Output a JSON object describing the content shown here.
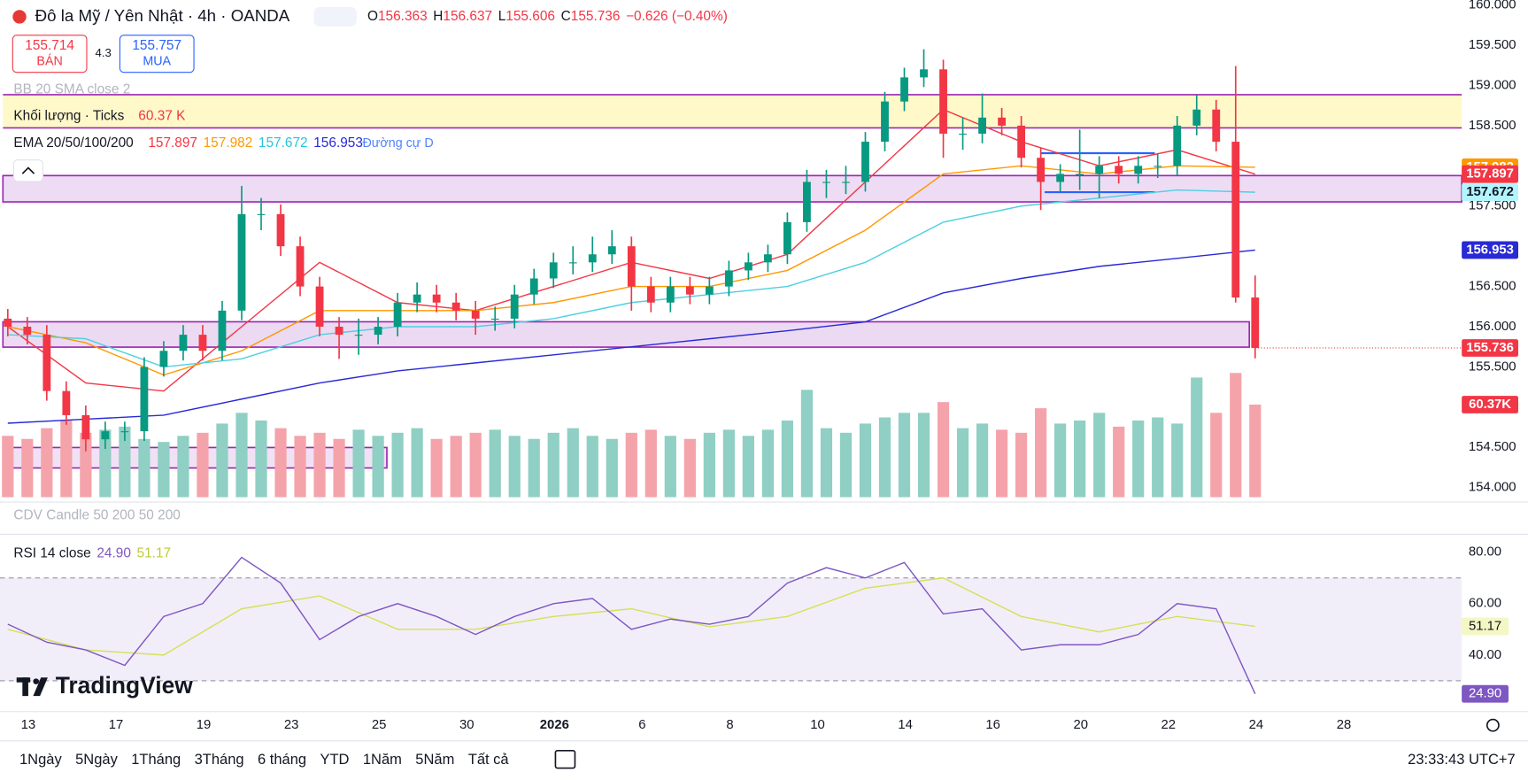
{
  "header": {
    "symbol": "Đô la Mỹ / Yên Nhật · 4h · OANDA",
    "ohlc_labels": [
      "O",
      "H",
      "L",
      "C"
    ],
    "change": "−0.626 (−0.40%)",
    "sell_price": "155.714",
    "sell_label": "BÁN",
    "spread": "4.3",
    "buy_price": "155.757",
    "buy_label": "MUA"
  },
  "indicators": {
    "bb": "BB 20 SMA close 2",
    "cdv": "CDV Candle 50 200 50 200",
    "ema_overlay": "Đường cự D"
  },
  "chart_data": {
    "type": "candlestick",
    "up_color": "#089981",
    "down_color": "#f23645",
    "grid": false,
    "ylim": [
      153.88,
      160.06
    ],
    "yticks": [
      {
        "value": 154,
        "label": "154.000"
      },
      {
        "value": 154.5,
        "label": "154.500"
      },
      {
        "value": 155.5,
        "label": "155.500"
      },
      {
        "value": 156,
        "label": "156.000"
      },
      {
        "value": 156.5,
        "label": "156.500"
      },
      {
        "value": 157.5,
        "label": "157.500"
      },
      {
        "value": 158.5,
        "label": "158.500"
      },
      {
        "value": 159,
        "label": "159.000"
      },
      {
        "value": 159.5,
        "label": "159.500"
      },
      {
        "value": 160,
        "label": "160.000"
      }
    ],
    "xtick_labels": [
      "13",
      "17",
      "19",
      "23",
      "25",
      "30",
      "2026",
      "6",
      "8",
      "10",
      "14",
      "16",
      "20",
      "22",
      "24",
      "28"
    ],
    "candles": [
      [
        156.1,
        156.22,
        155.88,
        156.0
      ],
      [
        156.0,
        156.12,
        155.78,
        155.9
      ],
      [
        155.9,
        156.02,
        155.08,
        155.2
      ],
      [
        155.2,
        155.32,
        154.78,
        154.9
      ],
      [
        154.9,
        155.02,
        154.45,
        154.6
      ],
      [
        154.6,
        154.82,
        154.48,
        154.7
      ],
      [
        154.7,
        154.82,
        154.58,
        154.7
      ],
      [
        154.7,
        155.62,
        154.58,
        155.5
      ],
      [
        155.5,
        155.82,
        155.38,
        155.7
      ],
      [
        155.7,
        156.02,
        155.58,
        155.9
      ],
      [
        155.9,
        156.02,
        155.58,
        155.7
      ],
      [
        155.7,
        156.32,
        155.58,
        156.2
      ],
      [
        156.2,
        157.75,
        156.08,
        157.4
      ],
      [
        157.4,
        157.6,
        157.2,
        157.4
      ],
      [
        157.4,
        157.52,
        156.88,
        157.0
      ],
      [
        157.0,
        157.12,
        156.38,
        156.5
      ],
      [
        156.5,
        156.62,
        155.88,
        156.0
      ],
      [
        156.0,
        156.12,
        155.6,
        155.9
      ],
      [
        155.9,
        156.1,
        155.65,
        155.9
      ],
      [
        155.9,
        156.12,
        155.78,
        156.0
      ],
      [
        156.0,
        156.42,
        155.88,
        156.3
      ],
      [
        156.3,
        156.55,
        156.18,
        156.4
      ],
      [
        156.4,
        156.52,
        156.18,
        156.3
      ],
      [
        156.3,
        156.42,
        156.08,
        156.2
      ],
      [
        156.2,
        156.32,
        155.9,
        156.1
      ],
      [
        156.1,
        156.25,
        155.95,
        156.1
      ],
      [
        156.1,
        156.52,
        155.98,
        156.4
      ],
      [
        156.4,
        156.72,
        156.28,
        156.6
      ],
      [
        156.6,
        156.92,
        156.48,
        156.8
      ],
      [
        156.8,
        157.0,
        156.65,
        156.8
      ],
      [
        156.8,
        157.12,
        156.68,
        156.9
      ],
      [
        156.9,
        157.2,
        156.78,
        157.0
      ],
      [
        157.0,
        157.12,
        156.2,
        156.5
      ],
      [
        156.5,
        156.62,
        156.18,
        156.3
      ],
      [
        156.3,
        156.62,
        156.18,
        156.5
      ],
      [
        156.5,
        156.62,
        156.28,
        156.4
      ],
      [
        156.4,
        156.62,
        156.28,
        156.5
      ],
      [
        156.5,
        156.82,
        156.38,
        156.7
      ],
      [
        156.7,
        156.92,
        156.58,
        156.8
      ],
      [
        156.8,
        157.02,
        156.68,
        156.9
      ],
      [
        156.9,
        157.42,
        156.78,
        157.3
      ],
      [
        157.3,
        157.95,
        157.18,
        157.8
      ],
      [
        157.8,
        157.95,
        157.6,
        157.8
      ],
      [
        157.8,
        158.0,
        157.65,
        157.8
      ],
      [
        157.8,
        158.42,
        157.68,
        158.3
      ],
      [
        158.3,
        158.92,
        158.18,
        158.8
      ],
      [
        158.8,
        159.22,
        158.68,
        159.1
      ],
      [
        159.1,
        159.45,
        158.98,
        159.2
      ],
      [
        159.2,
        159.32,
        158.1,
        158.4
      ],
      [
        158.4,
        158.6,
        158.2,
        158.4
      ],
      [
        158.4,
        158.9,
        158.28,
        158.6
      ],
      [
        158.6,
        158.72,
        158.38,
        158.5
      ],
      [
        158.5,
        158.62,
        157.98,
        158.1
      ],
      [
        158.1,
        158.22,
        157.45,
        157.8
      ],
      [
        157.8,
        158.02,
        157.68,
        157.9
      ],
      [
        157.9,
        158.45,
        157.7,
        157.9
      ],
      [
        157.9,
        158.12,
        157.6,
        158.0
      ],
      [
        158.0,
        158.12,
        157.78,
        157.9
      ],
      [
        157.9,
        158.12,
        157.78,
        158.0
      ],
      [
        158.0,
        158.15,
        157.85,
        158.0
      ],
      [
        158.0,
        158.62,
        157.88,
        158.5
      ],
      [
        158.5,
        158.88,
        158.38,
        158.7
      ],
      [
        158.7,
        158.82,
        158.18,
        158.3
      ],
      [
        158.3,
        159.24,
        156.3,
        156.363
      ],
      [
        156.363,
        156.637,
        155.606,
        155.736
      ]
    ],
    "volume": {
      "name": "Khối lượng · Ticks",
      "legend_value": "60.37 K",
      "badge": "60.37K",
      "values": [
        40,
        38,
        45,
        50,
        42,
        44,
        46,
        38,
        36,
        40,
        42,
        48,
        55,
        50,
        45,
        40,
        42,
        38,
        44,
        40,
        42,
        45,
        38,
        40,
        42,
        44,
        40,
        38,
        42,
        45,
        40,
        38,
        42,
        44,
        40,
        38,
        42,
        44,
        40,
        44,
        50,
        70,
        45,
        42,
        48,
        52,
        55,
        55,
        62,
        45,
        48,
        44,
        42,
        58,
        48,
        50,
        55,
        46,
        50,
        52,
        48,
        78,
        55,
        81,
        60.37
      ]
    },
    "ema": {
      "label": "EMA 20/50/100/200",
      "index": [
        0,
        4,
        8,
        12,
        16,
        20,
        24,
        28,
        32,
        36,
        40,
        44,
        48,
        52,
        56,
        60,
        64
      ],
      "series": [
        {
          "color": "#f23645",
          "values": [
            156.0,
            155.3,
            155.2,
            156.0,
            156.8,
            156.3,
            156.2,
            156.5,
            156.8,
            156.6,
            156.9,
            157.8,
            158.7,
            158.3,
            158.0,
            158.2,
            157.897
          ]
        },
        {
          "color": "#ff9800",
          "values": [
            156.0,
            155.8,
            155.4,
            155.7,
            156.2,
            156.2,
            156.2,
            156.3,
            156.5,
            156.5,
            156.7,
            157.2,
            157.9,
            158.0,
            157.9,
            158.0,
            157.982
          ]
        },
        {
          "color": "#4dd0e1",
          "values": [
            155.9,
            155.85,
            155.5,
            155.6,
            155.9,
            156.0,
            156.0,
            156.1,
            156.3,
            156.4,
            156.5,
            156.8,
            157.3,
            157.5,
            157.6,
            157.7,
            157.672
          ]
        },
        {
          "color": "#2929d6",
          "values": [
            154.8,
            154.85,
            154.9,
            155.1,
            155.3,
            155.45,
            155.55,
            155.65,
            155.75,
            155.85,
            155.95,
            156.06,
            156.42,
            156.6,
            156.75,
            156.85,
            156.953
          ]
        }
      ]
    },
    "rsi": {
      "label": "RSI 14 close",
      "ylim": [
        18,
        87
      ],
      "yticks": [
        {
          "value": 80,
          "label": "80.00"
        },
        {
          "value": 60,
          "label": "60.00"
        },
        {
          "value": 40,
          "label": "40.00"
        }
      ],
      "levels": [
        30,
        70
      ],
      "color": "#7e57c2",
      "last_label": "24.90",
      "index": [
        0,
        2,
        4,
        6,
        8,
        10,
        12,
        14,
        16,
        18,
        20,
        22,
        24,
        26,
        28,
        30,
        32,
        34,
        36,
        38,
        40,
        42,
        44,
        46,
        48,
        50,
        52,
        54,
        56,
        58,
        60,
        62,
        64
      ],
      "values": [
        52,
        45,
        42,
        36,
        55,
        60,
        78,
        68,
        46,
        55,
        60,
        55,
        48,
        55,
        60,
        62,
        50,
        54,
        52,
        55,
        68,
        74,
        70,
        76,
        56,
        58,
        42,
        44,
        44,
        48,
        60,
        58,
        24.9
      ],
      "ma": {
        "color": "#d4e157",
        "index": [
          0,
          4,
          8,
          12,
          16,
          20,
          24,
          28,
          32,
          36,
          40,
          44,
          48,
          52,
          56,
          60,
          64
        ],
        "values": [
          50,
          42,
          40,
          58,
          63,
          50,
          50,
          55,
          58,
          51,
          55,
          66,
          70,
          55,
          49,
          55,
          51.17
        ]
      }
    }
  },
  "toolbar": {
    "ranges": [
      "1Ngày",
      "5Ngày",
      "1Tháng",
      "3Tháng",
      "6 tháng",
      "YTD",
      "1Năm",
      "5Năm",
      "Tất cả"
    ],
    "clock": "23:33:43 UTC+7"
  },
  "brand": "TradingView"
}
